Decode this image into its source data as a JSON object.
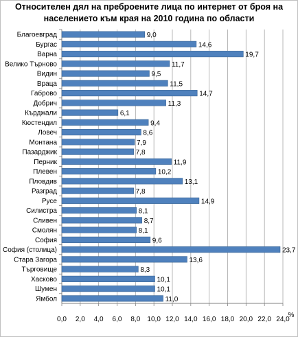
{
  "title_lines": [
    "Относителен дял на преброените лица по интернет от броя на",
    "населението към края на 2010 година по области"
  ],
  "chart_data": {
    "type": "bar",
    "orientation": "horizontal",
    "title": "Относителен дял на преброените лица по интернет от броя на населението към края на 2010 година по области",
    "xlabel": "%",
    "ylabel": "",
    "xlim": [
      0,
      24
    ],
    "xticks": [
      "0,0",
      "2,0",
      "4,0",
      "6,0",
      "8,0",
      "10,0",
      "12,0",
      "14,0",
      "16,0",
      "18,0",
      "20,0",
      "22,0",
      "24,0"
    ],
    "grid": true,
    "categories": [
      "Благоевград",
      "Бургас",
      "Варна",
      "Велико Търново",
      "Видин",
      "Враца",
      "Габрово",
      "Добрич",
      "Кърджали",
      "Кюстендил",
      "Ловеч",
      "Монтана",
      "Пазарджик",
      "Перник",
      "Плевен",
      "Пловдив",
      "Разград",
      "Русе",
      "Силистра",
      "Сливен",
      "Смолян",
      "София",
      "София (столица)",
      "Стара Загора",
      "Търговище",
      "Хасково",
      "Шумен",
      "Ямбол"
    ],
    "values": [
      9.0,
      14.6,
      19.7,
      11.7,
      9.5,
      11.5,
      14.7,
      11.3,
      6.1,
      9.4,
      8.6,
      7.9,
      7.8,
      11.9,
      10.2,
      13.1,
      7.8,
      14.9,
      8.1,
      8.7,
      8.1,
      9.6,
      23.7,
      13.6,
      8.3,
      10.1,
      10.1,
      11.0
    ],
    "value_labels": [
      "9,0",
      "14,6",
      "19,7",
      "11,7",
      "9,5",
      "11,5",
      "14,7",
      "11,3",
      "6,1",
      "9,4",
      "8,6",
      "7,9",
      "7,8",
      "11,9",
      "10,2",
      "13,1",
      "7,8",
      "14,9",
      "8,1",
      "8,7",
      "8,1",
      "9,6",
      "23,7",
      "13,6",
      "8,3",
      "10,1",
      "10,1",
      "11,0"
    ],
    "bar_color": "#4f81bd",
    "bar_edge_color": "#3a6494",
    "grid_color": "#a6a6a6"
  }
}
